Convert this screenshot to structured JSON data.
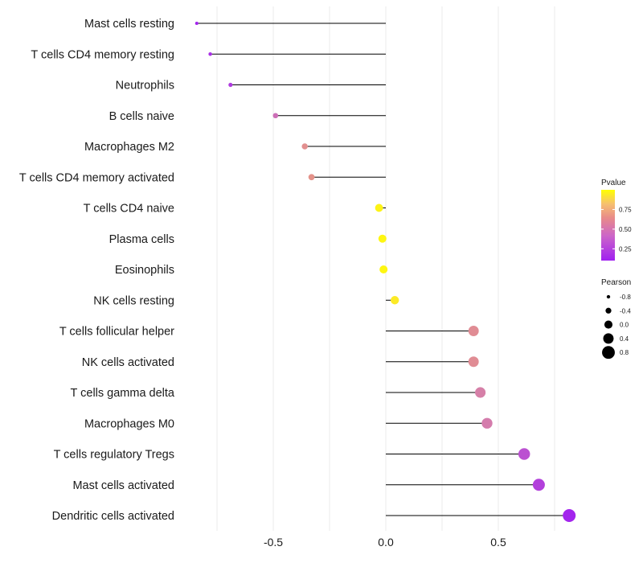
{
  "chart_data": {
    "type": "lollipop",
    "title": "",
    "xlabel": "",
    "ylabel": "",
    "xlim": [
      -0.85,
      0.84
    ],
    "x_ticks": [
      {
        "value": -0.5,
        "label": "-0.5"
      },
      {
        "value": 0.0,
        "label": "0.0"
      },
      {
        "value": 0.5,
        "label": "0.5"
      }
    ],
    "grid": true,
    "colors": {
      "low": "#a020f0",
      "mid": "#e08080",
      "high": "#ffff00"
    },
    "series": [
      {
        "label": "Mast cells resting",
        "pearson": -0.84,
        "pvalue": 0.12
      },
      {
        "label": "T cells CD4 memory resting",
        "pearson": -0.78,
        "pvalue": 0.16
      },
      {
        "label": "Neutrophils",
        "pearson": -0.69,
        "pvalue": 0.2
      },
      {
        "label": "B cells naive",
        "pearson": -0.49,
        "pvalue": 0.42
      },
      {
        "label": "Macrophages M2",
        "pearson": -0.36,
        "pvalue": 0.6
      },
      {
        "label": "T cells CD4 memory activated",
        "pearson": -0.33,
        "pvalue": 0.62
      },
      {
        "label": "T cells CD4 naive",
        "pearson": -0.03,
        "pvalue": 0.96
      },
      {
        "label": "Plasma cells",
        "pearson": -0.015,
        "pvalue": 0.97
      },
      {
        "label": "Eosinophils",
        "pearson": -0.01,
        "pvalue": 0.97
      },
      {
        "label": "NK cells resting",
        "pearson": 0.04,
        "pvalue": 0.93
      },
      {
        "label": "T cells follicular helper",
        "pearson": 0.39,
        "pvalue": 0.58
      },
      {
        "label": "NK cells activated",
        "pearson": 0.39,
        "pvalue": 0.58
      },
      {
        "label": "T cells gamma delta",
        "pearson": 0.42,
        "pvalue": 0.5
      },
      {
        "label": "Macrophages M0",
        "pearson": 0.45,
        "pvalue": 0.48
      },
      {
        "label": "T cells regulatory  Tregs ",
        "pearson": 0.615,
        "pvalue": 0.28
      },
      {
        "label": "Mast cells activated",
        "pearson": 0.68,
        "pvalue": 0.22
      },
      {
        "label": "Dendritic cells activated",
        "pearson": 0.815,
        "pvalue": 0.12
      }
    ],
    "legend_pvalue": {
      "title": "Pvalue",
      "ticks": [
        {
          "value": 0.75,
          "label": "0.75"
        },
        {
          "value": 0.5,
          "label": "0.50"
        },
        {
          "value": 0.25,
          "label": "0.25"
        }
      ],
      "range": [
        0.1,
        1.0
      ]
    },
    "legend_pearson": {
      "title": "Pearson",
      "items": [
        {
          "value": -0.8,
          "label": "-0.8"
        },
        {
          "value": -0.4,
          "label": "-0.4"
        },
        {
          "value": 0.0,
          "label": "0.0"
        },
        {
          "value": 0.4,
          "label": "0.4"
        },
        {
          "value": 0.8,
          "label": "0.8"
        }
      ]
    }
  }
}
